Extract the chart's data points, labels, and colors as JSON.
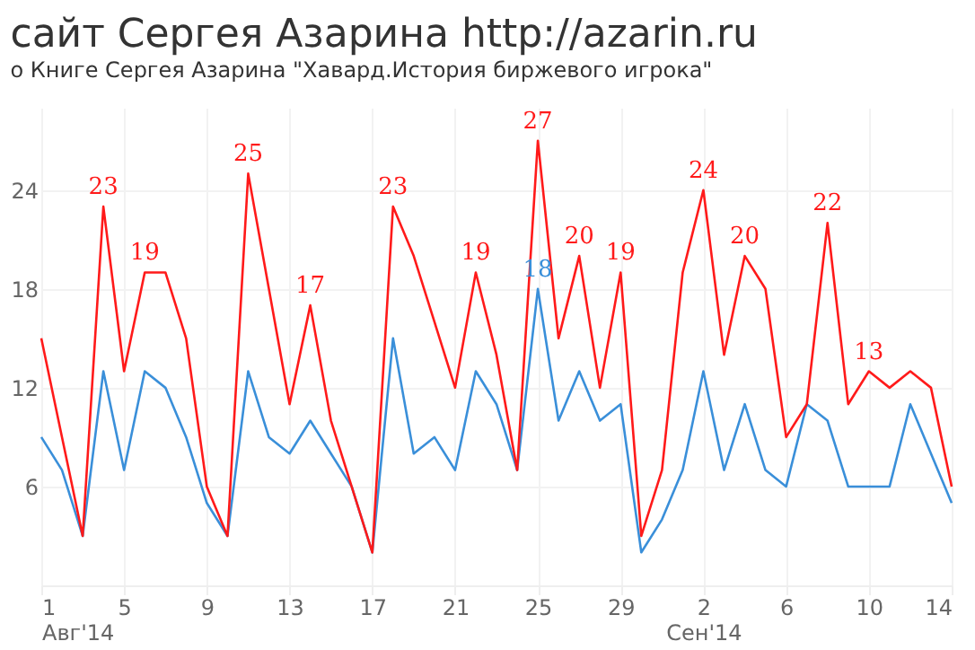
{
  "chart_data": {
    "type": "line",
    "title": "сайт Сергея Азарина http://azarin.ru",
    "subtitle": "о Книге Сергея Азарина \"Хавард.История биржевого игрока\"",
    "x": [
      "2014-08-01",
      "2014-08-02",
      "2014-08-03",
      "2014-08-04",
      "2014-08-05",
      "2014-08-06",
      "2014-08-07",
      "2014-08-08",
      "2014-08-09",
      "2014-08-10",
      "2014-08-11",
      "2014-08-12",
      "2014-08-13",
      "2014-08-14",
      "2014-08-15",
      "2014-08-16",
      "2014-08-17",
      "2014-08-18",
      "2014-08-19",
      "2014-08-20",
      "2014-08-21",
      "2014-08-22",
      "2014-08-23",
      "2014-08-24",
      "2014-08-25",
      "2014-08-26",
      "2014-08-27",
      "2014-08-28",
      "2014-08-29",
      "2014-08-30",
      "2014-08-31",
      "2014-09-01",
      "2014-09-02",
      "2014-09-03",
      "2014-09-04",
      "2014-09-05",
      "2014-09-06",
      "2014-09-07",
      "2014-09-08",
      "2014-09-09",
      "2014-09-10",
      "2014-09-11",
      "2014-09-12",
      "2014-09-13",
      "2014-09-14"
    ],
    "series": [
      {
        "color": "#ff1a1a",
        "values": [
          15,
          9,
          3,
          23,
          13,
          19,
          19,
          15,
          6,
          3,
          25,
          18,
          11,
          17,
          10,
          6,
          2,
          23,
          20,
          16,
          12,
          19,
          14,
          7,
          27,
          15,
          20,
          12,
          19,
          3,
          7,
          19,
          24,
          14,
          20,
          18,
          9,
          11,
          22,
          11,
          13,
          12,
          13,
          12,
          6
        ],
        "value_labels": [
          null,
          null,
          null,
          "23",
          null,
          "19",
          null,
          null,
          null,
          null,
          "25",
          null,
          null,
          "17",
          null,
          null,
          null,
          "23",
          null,
          null,
          null,
          "19",
          null,
          null,
          "27",
          null,
          "20",
          null,
          "19",
          null,
          null,
          null,
          "24",
          null,
          "20",
          null,
          null,
          null,
          "22",
          null,
          "13",
          null,
          null,
          null,
          null
        ]
      },
      {
        "color": "#3a8fd9",
        "values": [
          9,
          7,
          3,
          13,
          7,
          13,
          12,
          9,
          5,
          3,
          13,
          9,
          8,
          10,
          8,
          6,
          2,
          15,
          8,
          9,
          7,
          13,
          11,
          7,
          18,
          10,
          13,
          10,
          11,
          2,
          4,
          7,
          13,
          7,
          11,
          7,
          6,
          11,
          10,
          6,
          6,
          6,
          11,
          8,
          5
        ],
        "value_labels": [
          null,
          null,
          null,
          null,
          null,
          null,
          null,
          null,
          null,
          null,
          null,
          null,
          null,
          null,
          null,
          null,
          null,
          null,
          null,
          null,
          null,
          null,
          null,
          null,
          "18",
          null,
          null,
          null,
          null,
          null,
          null,
          null,
          null,
          null,
          null,
          null,
          null,
          null,
          null,
          null,
          null,
          null,
          null,
          null,
          null
        ]
      }
    ],
    "xlim": [
      "2014-08-01",
      "2014-09-14"
    ],
    "xticks": [
      {
        "value": "2014-08-01",
        "label": "1\nАвг'14"
      },
      {
        "value": "2014-08-05",
        "label": "5"
      },
      {
        "value": "2014-08-09",
        "label": "9"
      },
      {
        "value": "2014-08-13",
        "label": "13"
      },
      {
        "value": "2014-08-17",
        "label": "17"
      },
      {
        "value": "2014-08-21",
        "label": "21"
      },
      {
        "value": "2014-08-25",
        "label": "25"
      },
      {
        "value": "2014-08-29",
        "label": "29"
      },
      {
        "value": "2014-09-02",
        "label": "2\nСен'14"
      },
      {
        "value": "2014-09-06",
        "label": "6"
      },
      {
        "value": "2014-09-10",
        "label": "10"
      },
      {
        "value": "2014-09-14",
        "label": "14"
      }
    ],
    "ylim": [
      0,
      29
    ],
    "yticks": [
      6,
      12,
      18,
      24
    ],
    "grid": true,
    "legend": false,
    "marker": "none",
    "line_style": "solid"
  }
}
